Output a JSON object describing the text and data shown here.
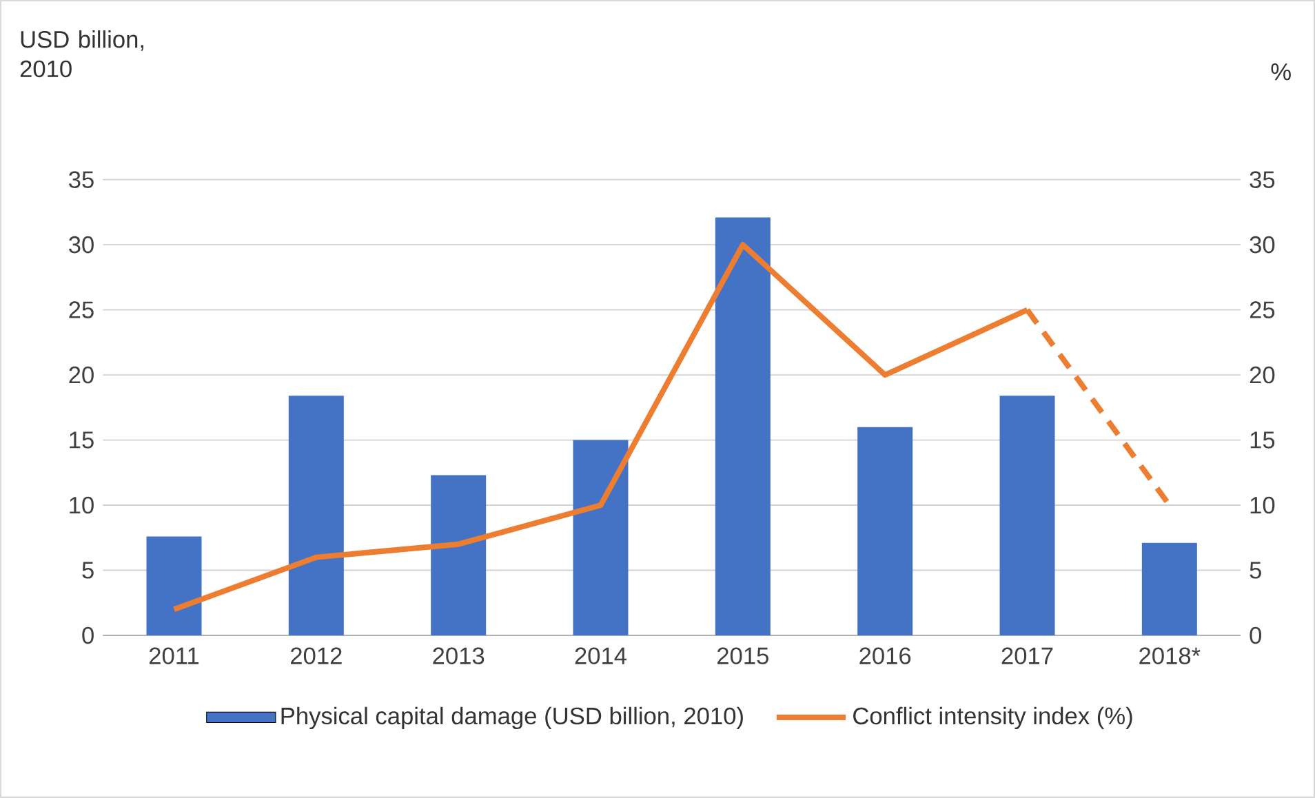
{
  "chart_data": {
    "type": "bar",
    "ylabel": "USD billion, 2010",
    "y2label": "%",
    "categories": [
      "2011",
      "2012",
      "2013",
      "2014",
      "2015",
      "2016",
      "2017",
      "2018*"
    ],
    "series": [
      {
        "name": "Physical capital damage (USD billion, 2010)",
        "color": "#4472c4",
        "values": [
          7.6,
          18.4,
          12.3,
          15.0,
          32.1,
          16.0,
          18.4,
          7.1
        ]
      },
      {
        "name": "Conflict intensity index (%)",
        "type": "line",
        "axis": "y2",
        "color": "#ed7d31",
        "line_style": "solid",
        "values": [
          2,
          6,
          7,
          10,
          30,
          20,
          25,
          null
        ]
      },
      {
        "type": "line",
        "axis": "y2",
        "color": "#ed7d31",
        "line_style": "dashed",
        "values": [
          null,
          null,
          null,
          null,
          null,
          null,
          25,
          10
        ]
      }
    ],
    "ylim": [
      0,
      35
    ],
    "yticks": [
      0,
      5,
      10,
      15,
      20,
      25,
      30,
      35
    ],
    "y2lim": [
      0,
      35
    ],
    "y2ticks": [
      0,
      5,
      10,
      15,
      20,
      25,
      30,
      35
    ],
    "grid": "y",
    "legend": "bottom",
    "marker": "none"
  }
}
